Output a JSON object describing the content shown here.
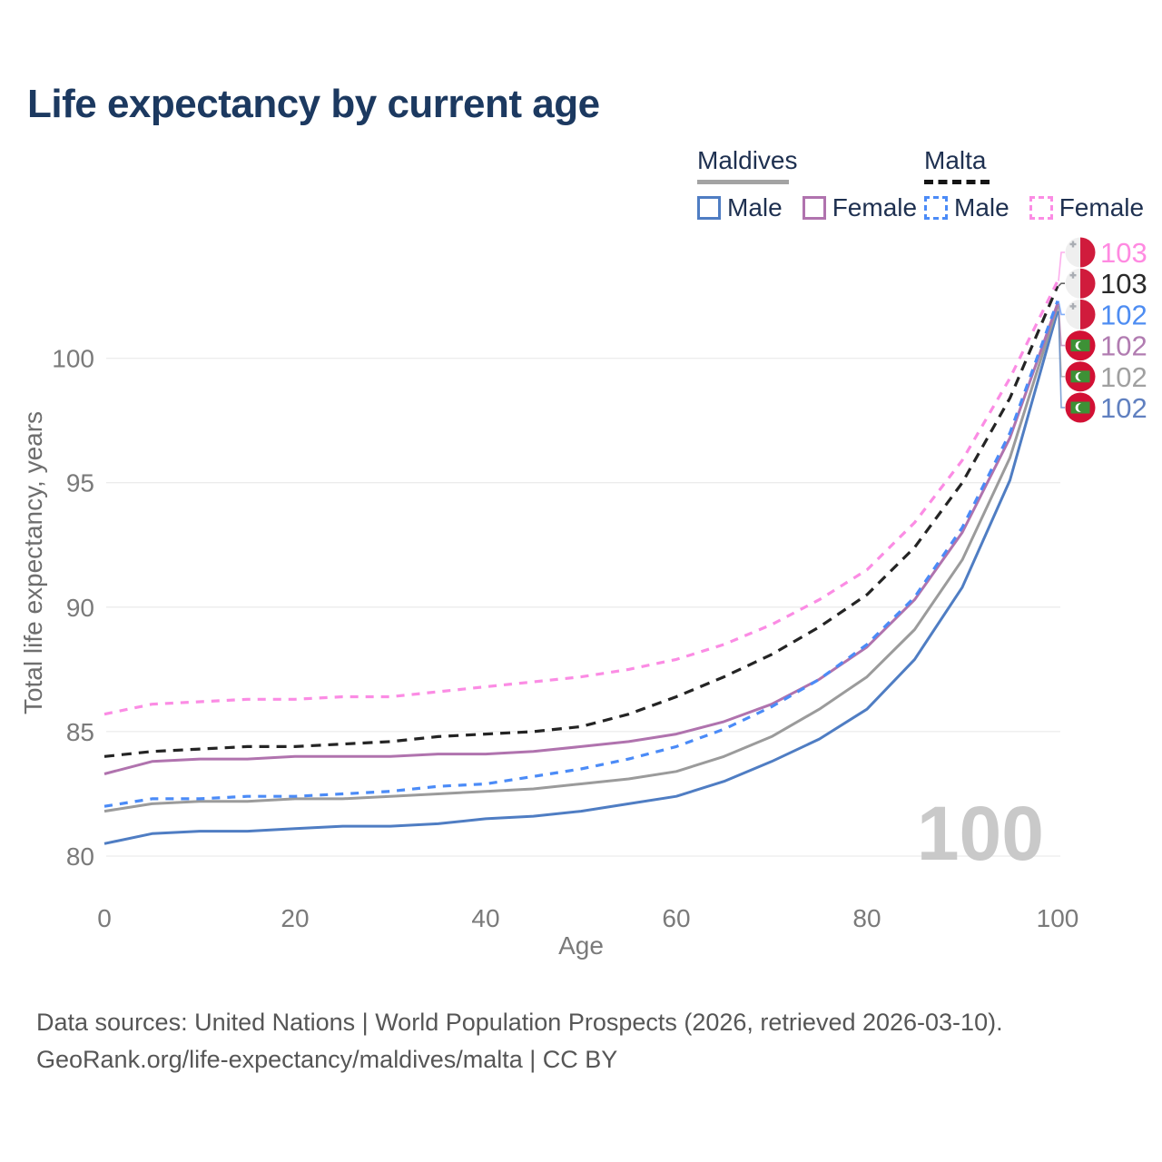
{
  "header": {
    "title": "Life expectancy by current age"
  },
  "legend": {
    "groups": [
      {
        "title": "Maldives",
        "underline": "solid",
        "items": [
          {
            "label": "Male",
            "color": "#4f7dc3",
            "dash": "solid"
          },
          {
            "label": "Female",
            "color": "#b073ae",
            "dash": "solid"
          }
        ]
      },
      {
        "title": "Malta",
        "underline": "dashed",
        "items": [
          {
            "label": "Male",
            "color": "#4b8bf7",
            "dash": "dashed"
          },
          {
            "label": "Female",
            "color": "#fb8ce4",
            "dash": "dashed"
          }
        ]
      }
    ]
  },
  "theme": {
    "grid": "#ececec",
    "tick": "#7a7a7a",
    "axis_label": "#6e6e6e",
    "watermark_color": "#c9c9c9",
    "title_color": "#1c3960",
    "malta_flag_red": "#d01b3c",
    "malta_flag_white": "#efefef",
    "malta_flag_cross": "#a9adb3",
    "maldives_flag_red": "#d21034",
    "maldives_flag_green": "#3d9136"
  },
  "chart_data": {
    "type": "line",
    "xlabel": "Age",
    "ylabel": "Total life expectancy, years",
    "x_ticks": [
      0,
      20,
      40,
      60,
      80,
      100
    ],
    "y_ticks": [
      80,
      85,
      90,
      95,
      100
    ],
    "xlim": [
      0,
      100
    ],
    "ylim": [
      79.5,
      104
    ],
    "grid": "horizontal",
    "legend_position": "top-right",
    "watermark": "100",
    "ages": [
      0,
      5,
      10,
      15,
      20,
      25,
      30,
      35,
      40,
      45,
      50,
      55,
      60,
      65,
      70,
      75,
      80,
      85,
      90,
      95,
      100
    ],
    "series": [
      {
        "id": "maldives_male",
        "name": "Maldives Male",
        "country": "maldives",
        "sex": "male",
        "color": "#4f7dc3",
        "dash": "solid",
        "values": [
          80.5,
          80.9,
          81.0,
          81.0,
          81.1,
          81.2,
          81.2,
          81.3,
          81.5,
          81.6,
          81.8,
          82.1,
          82.4,
          83.0,
          83.8,
          84.7,
          85.9,
          87.9,
          90.8,
          95.1,
          101.9
        ]
      },
      {
        "id": "maldives_total",
        "name": "Maldives",
        "country": "maldives",
        "sex": "both",
        "color": "#9b9b9b",
        "dash": "solid",
        "values": [
          81.8,
          82.1,
          82.2,
          82.2,
          82.3,
          82.3,
          82.4,
          82.5,
          82.6,
          82.7,
          82.9,
          83.1,
          83.4,
          84.0,
          84.8,
          85.9,
          87.2,
          89.1,
          91.9,
          96.0,
          102.1
        ]
      },
      {
        "id": "maldives_female",
        "name": "Maldives Female",
        "country": "maldives",
        "sex": "female",
        "color": "#b073ae",
        "dash": "solid",
        "values": [
          83.3,
          83.8,
          83.9,
          83.9,
          84.0,
          84.0,
          84.0,
          84.1,
          84.1,
          84.2,
          84.4,
          84.6,
          84.9,
          85.4,
          86.1,
          87.1,
          88.4,
          90.3,
          93.0,
          96.8,
          102.2
        ]
      },
      {
        "id": "malta_male",
        "name": "Malta Male",
        "country": "malta",
        "sex": "male",
        "color": "#4b8bf7",
        "dash": "dashed",
        "values": [
          82.0,
          82.3,
          82.3,
          82.4,
          82.4,
          82.5,
          82.6,
          82.8,
          82.9,
          83.2,
          83.5,
          83.9,
          84.4,
          85.1,
          86.0,
          87.1,
          88.5,
          90.4,
          93.2,
          97.0,
          102.3
        ]
      },
      {
        "id": "malta_total",
        "name": "Malta",
        "country": "malta",
        "sex": "both",
        "color": "#242424",
        "dash": "dashed",
        "values": [
          84.0,
          84.2,
          84.3,
          84.4,
          84.4,
          84.5,
          84.6,
          84.8,
          84.9,
          85.0,
          85.2,
          85.7,
          86.4,
          87.2,
          88.1,
          89.2,
          90.5,
          92.4,
          95.0,
          98.4,
          102.9
        ]
      },
      {
        "id": "malta_female",
        "name": "Malta Female",
        "country": "malta",
        "sex": "female",
        "color": "#fb8ce4",
        "dash": "dashed",
        "values": [
          85.7,
          86.1,
          86.2,
          86.3,
          86.3,
          86.4,
          86.4,
          86.6,
          86.8,
          87.0,
          87.2,
          87.5,
          87.9,
          88.5,
          89.3,
          90.3,
          91.5,
          93.4,
          95.9,
          99.2,
          103.1
        ]
      }
    ],
    "end_labels": [
      {
        "series": "malta_female",
        "country": "malta",
        "value": "103",
        "color": "#ff8ae1"
      },
      {
        "series": "malta_total",
        "country": "malta",
        "value": "103",
        "color": "#2a2a2a"
      },
      {
        "series": "malta_male",
        "country": "malta",
        "value": "102",
        "color": "#4e8df2"
      },
      {
        "series": "maldives_female",
        "country": "maldives",
        "value": "102",
        "color": "#b17cb1"
      },
      {
        "series": "maldives_total",
        "country": "maldives",
        "value": "102",
        "color": "#a0a0a0"
      },
      {
        "series": "maldives_male",
        "country": "maldives",
        "value": "102",
        "color": "#6080c0"
      }
    ]
  },
  "footer": {
    "line1": "Data sources: United Nations | World Population Prospects (2026, retrieved 2026-03-10).",
    "line2": "GeoRank.org/life-expectancy/maldives/malta | CC BY"
  }
}
